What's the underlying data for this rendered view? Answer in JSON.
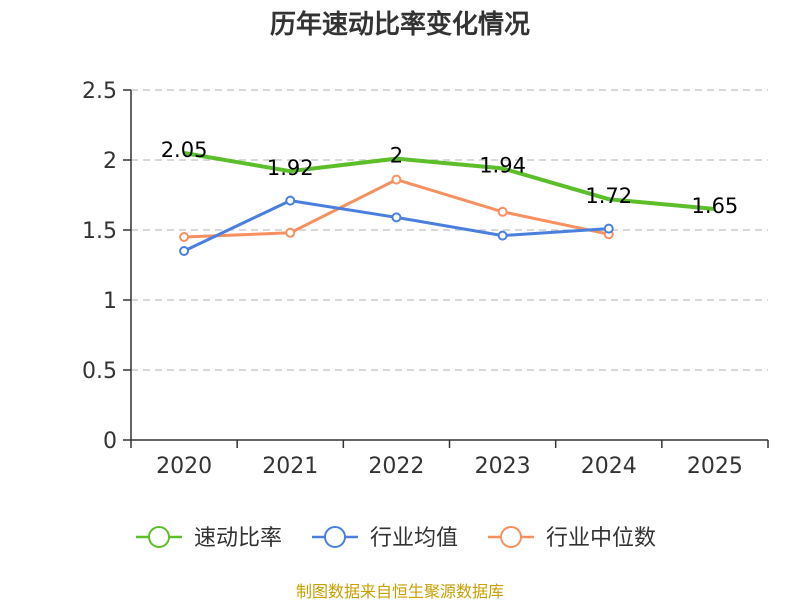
{
  "chart_data": {
    "type": "line",
    "title": "历年速动比率变化情况",
    "categories": [
      "2020",
      "2021",
      "2022",
      "2023",
      "2024",
      "2025"
    ],
    "ylim": [
      0,
      2.5
    ],
    "yticks": [
      "0",
      "0.5",
      "1",
      "1.5",
      "2",
      "2.5"
    ],
    "grid": true,
    "legend_position": "bottom",
    "series": [
      {
        "name": "速动比率",
        "color": "#5cbf2a",
        "values": [
          2.05,
          1.92,
          2.01,
          1.94,
          1.72,
          1.65
        ],
        "labels": [
          "2.05",
          "1.92",
          "2",
          "1.94",
          "1.72",
          "1.65"
        ],
        "show_points": false
      },
      {
        "name": "行业均值",
        "color": "#4a7fdd",
        "values": [
          1.35,
          1.71,
          1.59,
          1.46,
          1.51,
          null
        ],
        "show_points": true
      },
      {
        "name": "行业中位数",
        "color": "#f79060",
        "values": [
          1.45,
          1.48,
          1.86,
          1.63,
          1.47,
          null
        ],
        "show_points": true
      }
    ]
  },
  "source_text": "制图数据来自恒生聚源数据库",
  "source_color": "#c8a000"
}
